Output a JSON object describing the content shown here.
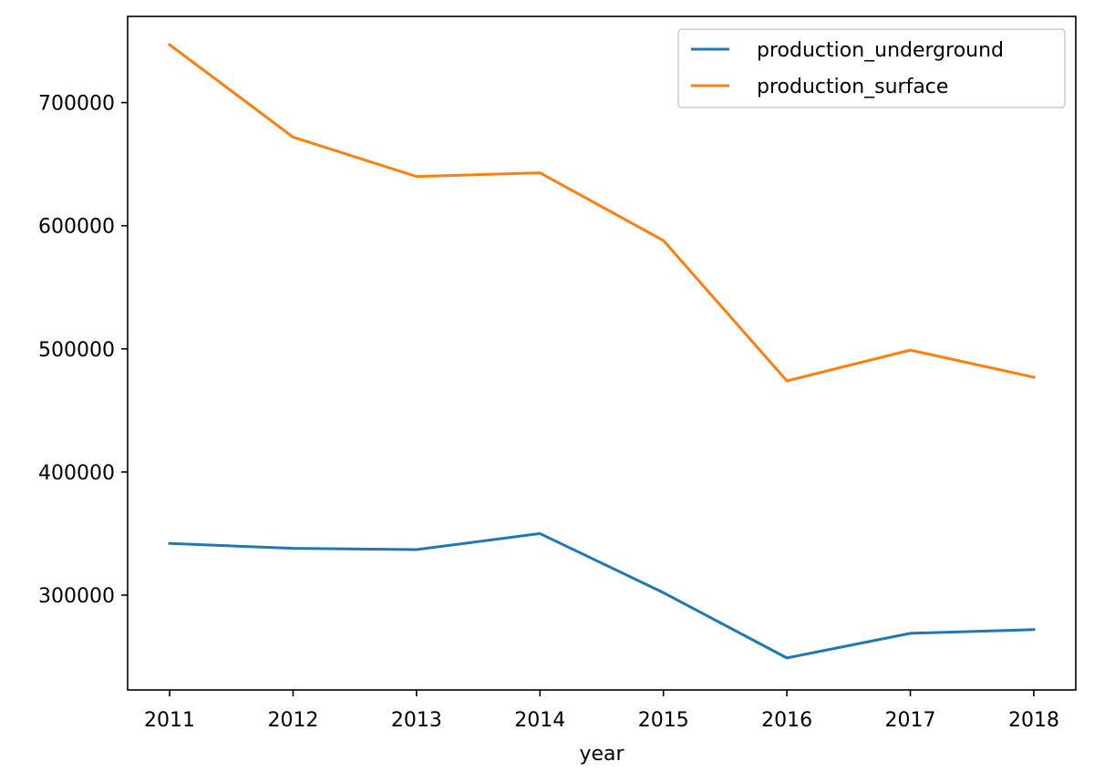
{
  "chart_data": {
    "type": "line",
    "title": "",
    "xlabel": "year",
    "ylabel": "",
    "x": [
      2011,
      2012,
      2013,
      2014,
      2015,
      2016,
      2017,
      2018
    ],
    "x_ticks": [
      "2011",
      "2012",
      "2013",
      "2014",
      "2015",
      "2016",
      "2017",
      "2018"
    ],
    "y_ticks": [
      300000,
      400000,
      500000,
      600000,
      700000
    ],
    "y_tick_labels": [
      "300000",
      "400000",
      "500000",
      "600000",
      "700000"
    ],
    "xlim": [
      2010.66,
      2018.34
    ],
    "ylim": [
      223000,
      770000
    ],
    "grid": false,
    "legend_position": "top-right",
    "series": [
      {
        "name": "production_underground",
        "color": "#1f77b4",
        "values": [
          342000,
          338000,
          337000,
          350000,
          302000,
          249000,
          269000,
          272000
        ]
      },
      {
        "name": "production_surface",
        "color": "#ff7f0e",
        "values": [
          747000,
          672000,
          640000,
          643000,
          588000,
          474000,
          499000,
          477000
        ]
      }
    ]
  }
}
